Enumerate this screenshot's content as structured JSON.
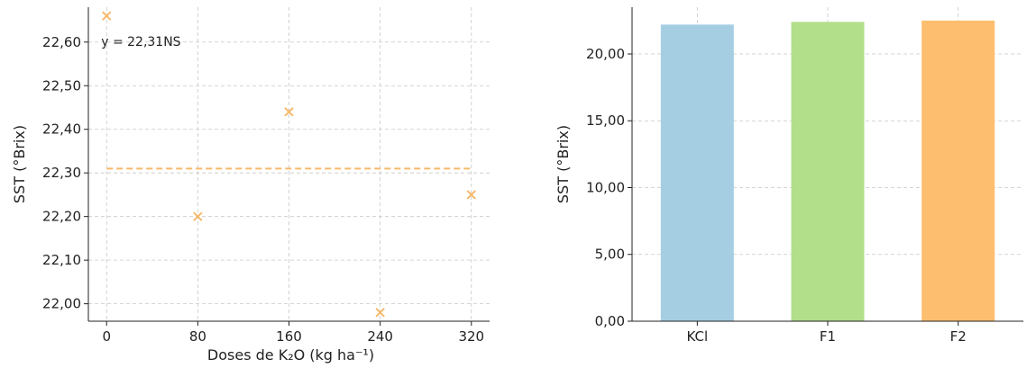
{
  "chart_data": [
    {
      "type": "scatter",
      "title": "",
      "xlabel": "Doses de K₂O (kg ha⁻¹)",
      "ylabel": "SST (°Brix)",
      "x": [
        0,
        80,
        160,
        240,
        320
      ],
      "y": [
        22.66,
        22.2,
        22.44,
        21.98,
        22.25
      ],
      "x_ticks": [
        "0",
        "80",
        "160",
        "240",
        "320"
      ],
      "y_ticks": [
        "22,00",
        "22,10",
        "22,20",
        "22,30",
        "22,40",
        "22,50",
        "22,60"
      ],
      "y_tick_values": [
        22.0,
        22.1,
        22.2,
        22.3,
        22.4,
        22.5,
        22.6
      ],
      "xlim": [
        -16,
        336
      ],
      "ylim": [
        21.96,
        22.68
      ],
      "fit_line": {
        "style": "dashed",
        "value": 22.31,
        "x_range": [
          0,
          320
        ]
      },
      "annotation": "y = 22,31NS",
      "marker": "x",
      "grid": true,
      "color": "#F6B96B"
    },
    {
      "type": "bar",
      "title": "",
      "xlabel": "",
      "ylabel": "SST (°Brix)",
      "categories": [
        "KCl",
        "F1",
        "F2"
      ],
      "values": [
        22.2,
        22.4,
        22.5
      ],
      "colors": [
        "#A6CEE3",
        "#B2DF8A",
        "#FDBF6F"
      ],
      "y_ticks": [
        "0,00",
        "5,00",
        "10,00",
        "15,00",
        "20,00"
      ],
      "y_tick_values": [
        0,
        5,
        10,
        15,
        20
      ],
      "ylim": [
        0,
        23.5
      ],
      "grid": true
    }
  ]
}
